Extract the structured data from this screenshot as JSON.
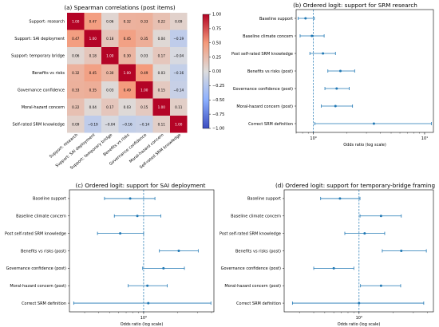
{
  "chart_data": [
    {
      "type": "heatmap",
      "title": "(a) Spearman correlations (post items)",
      "rows": [
        "Support: research",
        "Support: SAI deployment",
        "Support: temporary bridge",
        "Benefits vs risks",
        "Governance confidence",
        "Moral-hazard concern",
        "Self-rated SRM knowledge"
      ],
      "columns": [
        "Support: research",
        "Support: SAI deployment",
        "Support: temporary bridge",
        "Benefits vs risks",
        "Governance confidence",
        "Moral-hazard concern",
        "Self-rated SRM knowledge"
      ],
      "values": [
        [
          1.0,
          0.47,
          0.06,
          0.32,
          0.33,
          0.22,
          0.09
        ],
        [
          0.47,
          1.0,
          0.18,
          0.45,
          0.35,
          0.04,
          -0.19
        ],
        [
          0.06,
          0.18,
          1.0,
          0.3,
          0.03,
          0.17,
          -0.04
        ],
        [
          0.32,
          0.45,
          0.3,
          1.0,
          0.49,
          0.03,
          -0.16
        ],
        [
          0.33,
          0.35,
          0.03,
          0.49,
          1.0,
          0.15,
          -0.14
        ],
        [
          0.22,
          0.04,
          0.17,
          0.03,
          0.15,
          1.0,
          0.11
        ],
        [
          0.09,
          -0.19,
          -0.04,
          -0.16,
          -0.14,
          0.11,
          1.0
        ]
      ],
      "cell_labels": [
        [
          "1.00",
          "0.47",
          "0.06",
          "0.32",
          "0.33",
          "0.22",
          "0.09"
        ],
        [
          "0.47",
          "1.00",
          "0.18",
          "0.45",
          "0.35",
          "0.04",
          "−0.19"
        ],
        [
          "0.06",
          "0.18",
          "1.00",
          "0.30",
          "0.03",
          "0.17",
          "−0.04"
        ],
        [
          "0.32",
          "0.45",
          "0.30",
          "1.00",
          "0.49",
          "0.03",
          "−0.16"
        ],
        [
          "0.33",
          "0.35",
          "0.03",
          "0.49",
          "1.00",
          "0.15",
          "−0.14"
        ],
        [
          "0.22",
          "0.04",
          "0.17",
          "0.03",
          "0.15",
          "1.00",
          "0.11"
        ],
        [
          "0.09",
          "−0.19",
          "−0.04",
          "−0.16",
          "−0.14",
          "0.11",
          "1.00"
        ]
      ],
      "colorbar": {
        "range": [
          -1.0,
          1.0
        ],
        "ticks": [
          1.0,
          0.75,
          0.5,
          0.25,
          0.0,
          -0.25,
          -0.5,
          -0.75,
          -1.0
        ],
        "tick_labels": [
          "1.00",
          "0.75",
          "0.50",
          "0.25",
          "0.00",
          "−0.25",
          "−0.50",
          "−0.75",
          "−1.00"
        ],
        "colormap": "coolwarm",
        "low_color": "#3b4cc0",
        "mid_color": "#dddddd",
        "high_color": "#b40426"
      }
    },
    {
      "type": "scatter",
      "title": "(b) Ordered logit: support for SRM research",
      "xlabel": "Odds ratio (log scale)",
      "xscale": "log",
      "xlim": [
        0.7,
        12
      ],
      "x_tick_labels": [
        "10⁰",
        "10¹"
      ],
      "reference_line": 1,
      "categories": [
        "Baseline support",
        "Baseline climate concern",
        "Post self-rated SRM knowledge",
        "Benefits vs risks (post)",
        "Governance confidence (post)",
        "Moral-hazard concern (post)",
        "Correct SRM definition"
      ],
      "estimates": [
        0.85,
        0.97,
        1.22,
        1.75,
        1.62,
        1.58,
        3.5
      ],
      "ci_low": [
        0.73,
        0.76,
        0.93,
        1.35,
        1.27,
        1.18,
        1.03
      ],
      "ci_high": [
        1.02,
        1.25,
        1.58,
        2.35,
        2.1,
        2.25,
        11.5
      ],
      "color": "#1f77b4"
    },
    {
      "type": "scatter",
      "title": "(c) Ordered logit: support for SAI deployment",
      "xlabel": "Odds ratio (log scale)",
      "xscale": "log",
      "xlim": [
        0.22,
        4.2
      ],
      "x_tick_labels": [
        "10⁰"
      ],
      "reference_line": 1,
      "categories": [
        "Baseline support",
        "Baseline climate concern",
        "Post self-rated SRM knowledge",
        "Benefits vs risks (post)",
        "Governance confidence (post)",
        "Moral-hazard concern (post)",
        "Correct SRM definition"
      ],
      "estimates": [
        0.76,
        0.88,
        0.62,
        2.05,
        1.5,
        1.08,
        1.1
      ],
      "ci_low": [
        0.45,
        0.55,
        0.39,
        1.38,
        0.98,
        0.73,
        0.24
      ],
      "ci_high": [
        1.26,
        1.42,
        1.0,
        3.05,
        2.3,
        1.62,
        3.95
      ],
      "color": "#1f77b4"
    },
    {
      "type": "scatter",
      "title": "(d) Ordered logit: support for temporary-bridge framing",
      "xlabel": "Odds ratio (log scale)",
      "xscale": "log",
      "xlim": [
        0.22,
        4.5
      ],
      "x_tick_labels": [
        "10⁰"
      ],
      "reference_line": 1,
      "categories": [
        "Baseline support",
        "Baseline climate concern",
        "Post self-rated SRM knowledge",
        "Benefits vs risks (post)",
        "Governance confidence (post)",
        "Moral-hazard concern (post)",
        "Correct SRM definition"
      ],
      "estimates": [
        0.68,
        1.56,
        1.12,
        2.35,
        0.6,
        1.56,
        1.0
      ],
      "ci_low": [
        0.46,
        1.02,
        0.75,
        1.6,
        0.4,
        1.03,
        0.26
      ],
      "ci_high": [
        1.02,
        2.35,
        1.68,
        3.9,
        0.9,
        2.32,
        3.7
      ],
      "color": "#1f77b4"
    }
  ]
}
